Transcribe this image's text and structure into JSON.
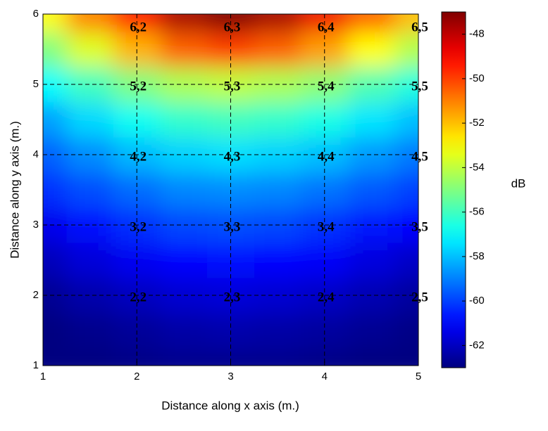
{
  "chart_data": {
    "type": "heatmap",
    "xlabel": "Distance along x axis (m.)",
    "ylabel": "Distance along y axis (m.)",
    "xlim": [
      1,
      5
    ],
    "ylim": [
      1,
      6
    ],
    "xticks": [
      1,
      2,
      3,
      4,
      5
    ],
    "yticks": [
      1,
      2,
      3,
      4,
      5,
      6
    ],
    "x": [
      1,
      1.5,
      2,
      2.5,
      3,
      3.5,
      4,
      4.5,
      5
    ],
    "y": [
      1,
      1.5,
      2,
      2.5,
      3,
      3.5,
      4,
      4.5,
      5,
      5.5,
      6
    ],
    "z": [
      [
        -63,
        -63,
        -62.9,
        -62.8,
        -62.8,
        -62.8,
        -62.9,
        -63,
        -63
      ],
      [
        -63,
        -62.8,
        -62.6,
        -62.4,
        -62.3,
        -62.4,
        -62.5,
        -62.7,
        -62.9
      ],
      [
        -62.7,
        -62.3,
        -62,
        -61.7,
        -61.6,
        -61.7,
        -61.9,
        -62.2,
        -62.5
      ],
      [
        -62.1,
        -61.6,
        -61.2,
        -60.9,
        -60.8,
        -60.9,
        -61.1,
        -61.5,
        -61.9
      ],
      [
        -61.3,
        -60.8,
        -60.3,
        -59.9,
        -59.8,
        -59.9,
        -60.2,
        -60.6,
        -61
      ],
      [
        -60.3,
        -59.8,
        -59.3,
        -58.9,
        -58.8,
        -58.9,
        -59.2,
        -59.6,
        -60
      ],
      [
        -59.5,
        -58.8,
        -58.1,
        -57.7,
        -57.5,
        -57.7,
        -58,
        -58.6,
        -59.1
      ],
      [
        -58.5,
        -57.6,
        -56.8,
        -56.2,
        -56,
        -56.2,
        -56.6,
        -57.4,
        -58
      ],
      [
        -57,
        -56,
        -55,
        -54.3,
        -54,
        -54.3,
        -54.8,
        -55.8,
        -56.5
      ],
      [
        -55,
        -53.5,
        -51.8,
        -50.5,
        -50,
        -50.5,
        -51.5,
        -53,
        -54.2
      ],
      [
        -53,
        -51,
        -49,
        -47.6,
        -47,
        -47.6,
        -48.8,
        -50.5,
        -52
      ]
    ],
    "colormap": "jet",
    "clim": [
      -63,
      -47
    ],
    "cticks": [
      -62,
      -60,
      -58,
      -56,
      -54,
      -52,
      -50,
      -48
    ],
    "colorbar_label": "dB",
    "grid_x": [
      2,
      3,
      4
    ],
    "grid_y": [
      2,
      3,
      4,
      5
    ],
    "point_x": [
      2,
      3,
      4,
      5
    ],
    "point_y": [
      2,
      3,
      4,
      5,
      6
    ],
    "point_labels": [
      [
        "2,2",
        "2,3",
        "2,4",
        "2,5"
      ],
      [
        "3,2",
        "3,3",
        "3,4",
        "3,5"
      ],
      [
        "4,2",
        "4,3",
        "4,4",
        "4,5"
      ],
      [
        "5,2",
        "5,3",
        "5,4",
        "5,5"
      ],
      [
        "6,2",
        "6,3",
        "6,4",
        "6,5"
      ]
    ]
  }
}
